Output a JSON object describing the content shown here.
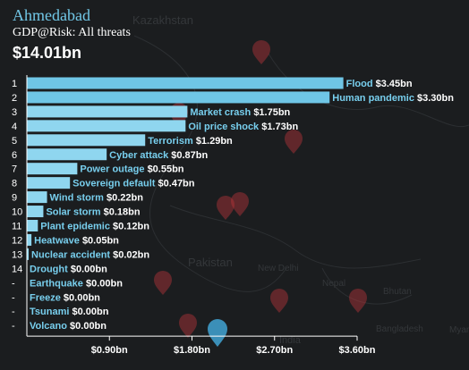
{
  "header": {
    "city": "Ahmedabad",
    "subtitle": "GDP@Risk: All threats",
    "total": "$14.01bn"
  },
  "map_labels": [
    "Kazakhstan",
    "Pakistan",
    "New Delhi",
    "Nepal",
    "Bhutan",
    "Bangladesh",
    "Myan",
    "India"
  ],
  "colors": {
    "background": "#1b1d1f",
    "bar_fill": "#8fd6ef",
    "bar_fill_top": "#6fc6e6",
    "label_name": "#78cfee",
    "label_value": "#ffffff",
    "axis": "#ffffff",
    "pin": "#b8353a",
    "pin_selected": "#3b8fb8"
  },
  "chart_data": {
    "type": "bar",
    "orientation": "horizontal",
    "title": "",
    "xlabel": "",
    "ylabel": "",
    "xlim": [
      0,
      3.6
    ],
    "xticks": [
      0.9,
      1.8,
      2.7,
      3.6
    ],
    "xtick_labels": [
      "$0.90bn",
      "$1.80bn",
      "$2.70bn",
      "$3.60bn"
    ],
    "grid": false,
    "legend": "none",
    "bars": [
      {
        "rank": "1",
        "name": "Flood",
        "value": 3.45,
        "value_label": "$3.45bn"
      },
      {
        "rank": "2",
        "name": "Human pandemic",
        "value": 3.3,
        "value_label": "$3.30bn"
      },
      {
        "rank": "3",
        "name": "Market crash",
        "value": 1.75,
        "value_label": "$1.75bn"
      },
      {
        "rank": "4",
        "name": "Oil price shock",
        "value": 1.73,
        "value_label": "$1.73bn"
      },
      {
        "rank": "5",
        "name": "Terrorism",
        "value": 1.29,
        "value_label": "$1.29bn"
      },
      {
        "rank": "6",
        "name": "Cyber attack",
        "value": 0.87,
        "value_label": "$0.87bn"
      },
      {
        "rank": "7",
        "name": "Power outage",
        "value": 0.55,
        "value_label": "$0.55bn"
      },
      {
        "rank": "8",
        "name": "Sovereign default",
        "value": 0.47,
        "value_label": "$0.47bn"
      },
      {
        "rank": "9",
        "name": "Wind storm",
        "value": 0.22,
        "value_label": "$0.22bn"
      },
      {
        "rank": "10",
        "name": "Solar storm",
        "value": 0.18,
        "value_label": "$0.18bn"
      },
      {
        "rank": "11",
        "name": "Plant epidemic",
        "value": 0.12,
        "value_label": "$0.12bn"
      },
      {
        "rank": "12",
        "name": "Heatwave",
        "value": 0.05,
        "value_label": "$0.05bn"
      },
      {
        "rank": "13",
        "name": "Nuclear accident",
        "value": 0.02,
        "value_label": "$0.02bn"
      },
      {
        "rank": "14",
        "name": "Drought",
        "value": 0.0,
        "value_label": "$0.00bn"
      },
      {
        "rank": "-",
        "name": "Earthquake",
        "value": 0.0,
        "value_label": "$0.00bn"
      },
      {
        "rank": "-",
        "name": "Freeze",
        "value": 0.0,
        "value_label": "$0.00bn"
      },
      {
        "rank": "-",
        "name": "Tsunami",
        "value": 0.0,
        "value_label": "$0.00bn"
      },
      {
        "rank": "-",
        "name": "Volcano",
        "value": 0.0,
        "value_label": "$0.00bn"
      }
    ]
  }
}
